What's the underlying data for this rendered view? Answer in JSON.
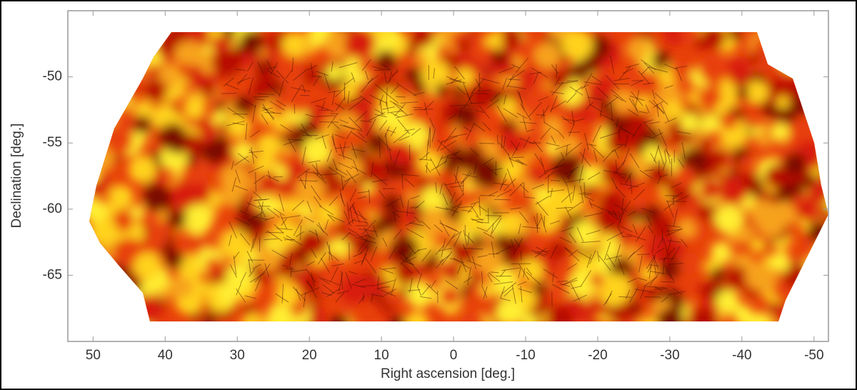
{
  "chart_data": {
    "type": "skymap",
    "xlabel": "Right ascension [deg.]",
    "ylabel": "Declination [deg.]",
    "xlim": [
      53.5,
      -52
    ],
    "ylim": [
      -70,
      -45
    ],
    "xticks": [
      50,
      40,
      30,
      20,
      10,
      0,
      -10,
      -20,
      -30,
      -40,
      -50
    ],
    "yticks": [
      -50,
      -55,
      -60,
      -65
    ]
  }
}
